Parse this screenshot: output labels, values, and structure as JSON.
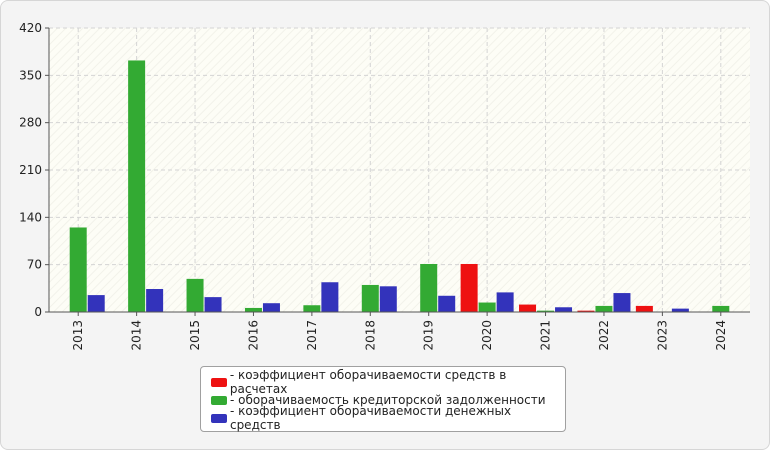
{
  "chart_data": {
    "type": "bar",
    "categories": [
      "2013",
      "2014",
      "2015",
      "2016",
      "2017",
      "2018",
      "2019",
      "2020",
      "2021",
      "2022",
      "2023",
      "2024"
    ],
    "series": [
      {
        "name": "коэффициент оборачиваемости средств в расчетах",
        "color": "#ee1111",
        "values": [
          0,
          0,
          0,
          0,
          0,
          0,
          0,
          71,
          11,
          2,
          9,
          0
        ]
      },
      {
        "name": "оборачиваемость кредиторской задолженности",
        "color": "#33aa33",
        "values": [
          125,
          372,
          49,
          6,
          10,
          40,
          71,
          14,
          2,
          9,
          0,
          9
        ]
      },
      {
        "name": "коэффициент оборачиваемости денежных средств",
        "color": "#3333bb",
        "values": [
          25,
          34,
          22,
          13,
          44,
          38,
          24,
          29,
          7,
          28,
          5,
          0
        ]
      }
    ],
    "yticks": [
      0,
      70,
      140,
      210,
      280,
      350,
      420
    ],
    "ylim": [
      0,
      420
    ],
    "grid": true,
    "legend_position": "bottom"
  }
}
